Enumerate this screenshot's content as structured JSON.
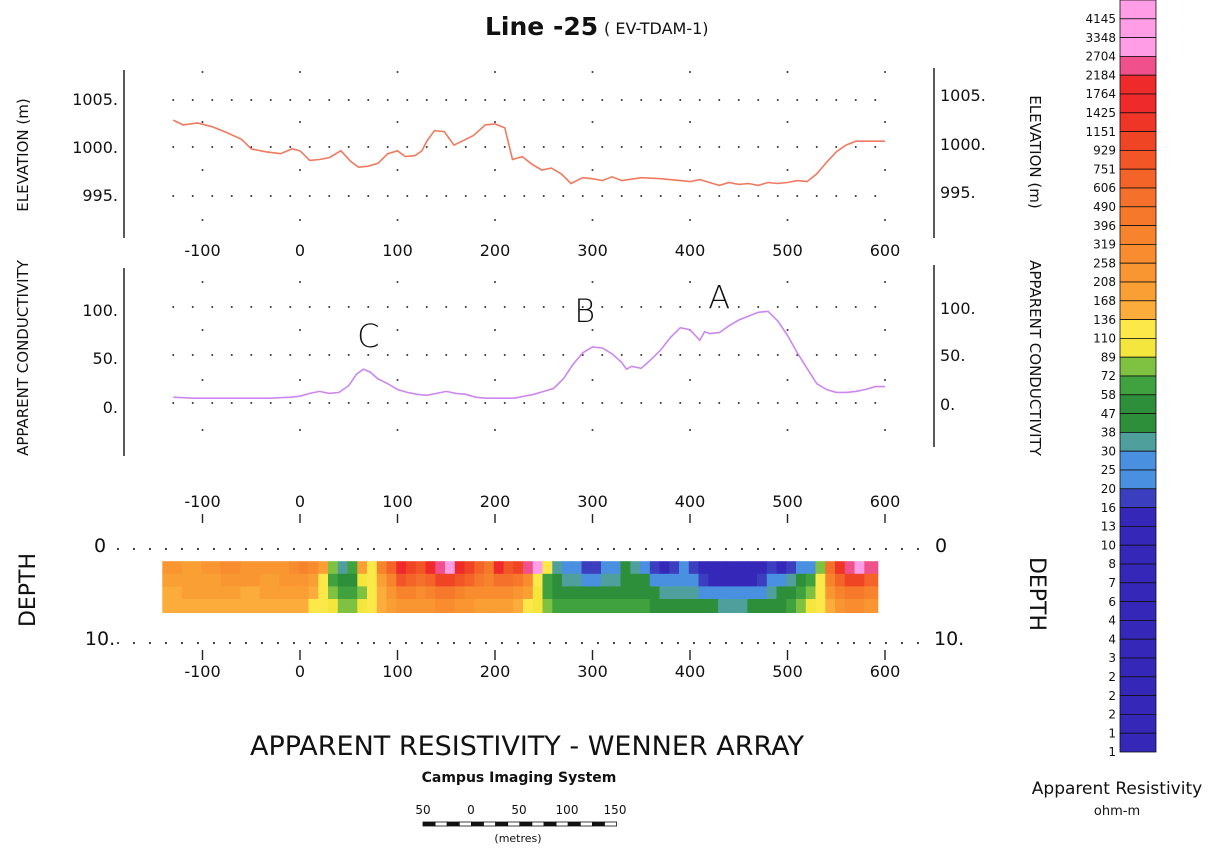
{
  "title": {
    "line": "Line -25",
    "survey": "( EV-TDAM-1)"
  },
  "chart_data": [
    {
      "type": "line",
      "name": "elevation",
      "ylabel_left": "ELEVATION (m)",
      "ylabel_right": "ELEVATION (m)",
      "x_ticks": [
        -100,
        0,
        100,
        200,
        300,
        400,
        500,
        600
      ],
      "y_ticks": [
        "1005.",
        "1000.",
        "995."
      ],
      "xlim": [
        -130,
        600
      ],
      "ylim": [
        991,
        1009
      ],
      "series_color": "#f07a60",
      "x": [
        -130,
        -120,
        -105,
        -90,
        -75,
        -60,
        -50,
        -35,
        -20,
        -8,
        0,
        10,
        20,
        30,
        42,
        52,
        60,
        70,
        80,
        90,
        100,
        108,
        118,
        125,
        130,
        138,
        148,
        158,
        168,
        178,
        190,
        200,
        210,
        218,
        228,
        238,
        248,
        258,
        268,
        278,
        290,
        300,
        310,
        320,
        330,
        350,
        370,
        390,
        400,
        410,
        420,
        430,
        440,
        450,
        460,
        470,
        480,
        490,
        500,
        510,
        520,
        530,
        540,
        550,
        560,
        570,
        580,
        590,
        600
      ],
      "y": [
        1002.8,
        1002.3,
        1002.5,
        1002.1,
        1001.5,
        1000.8,
        999.8,
        999.5,
        999.3,
        999.8,
        999.6,
        998.6,
        998.7,
        998.9,
        999.6,
        998.5,
        997.9,
        998.0,
        998.3,
        999.3,
        999.6,
        999.0,
        999.1,
        999.6,
        1000.6,
        1001.7,
        1001.6,
        1000.2,
        1000.7,
        1001.2,
        1002.3,
        1002.4,
        1002.0,
        998.7,
        999.0,
        998.2,
        997.6,
        997.8,
        997.2,
        996.2,
        996.8,
        996.7,
        996.5,
        996.9,
        996.5,
        996.8,
        996.7,
        996.5,
        996.4,
        996.6,
        996.3,
        996.0,
        996.3,
        996.1,
        996.2,
        996.0,
        996.3,
        996.2,
        996.3,
        996.5,
        996.4,
        997.2,
        998.4,
        999.5,
        1000.2,
        1000.6,
        1000.6,
        1000.6,
        1000.6
      ]
    },
    {
      "type": "line",
      "name": "apparent-conductivity",
      "ylabel_left": "APPARENT CONDUCTIVITY",
      "ylabel_right": "APPARENT CONDUCTIVITY",
      "x_ticks": [
        -100,
        0,
        100,
        200,
        300,
        400,
        500,
        600
      ],
      "y_ticks": [
        "100.",
        "50.",
        "0."
      ],
      "xlim": [
        -130,
        600
      ],
      "ylim": [
        -25,
        145
      ],
      "series_color": "#cc88ee",
      "annotations": [
        {
          "text": "C",
          "x": 70,
          "y": 58
        },
        {
          "text": "B",
          "x": 292,
          "y": 84
        },
        {
          "text": "A",
          "x": 430,
          "y": 98
        }
      ],
      "x": [
        -130,
        -110,
        -90,
        -70,
        -50,
        -30,
        -10,
        0,
        10,
        20,
        30,
        40,
        50,
        58,
        65,
        72,
        80,
        90,
        100,
        110,
        120,
        130,
        140,
        150,
        160,
        170,
        180,
        190,
        200,
        210,
        220,
        230,
        240,
        250,
        260,
        270,
        280,
        290,
        300,
        310,
        320,
        330,
        335,
        340,
        350,
        360,
        370,
        380,
        390,
        400,
        410,
        415,
        420,
        430,
        440,
        450,
        455,
        460,
        470,
        480,
        490,
        500,
        510,
        520,
        530,
        540,
        550,
        560,
        570,
        580,
        590,
        600
      ],
      "y": [
        6,
        5,
        5,
        5,
        5,
        5,
        6,
        7,
        10,
        12,
        10,
        11,
        18,
        30,
        35,
        32,
        25,
        20,
        14,
        11,
        9,
        8,
        10,
        12,
        10,
        9,
        6,
        5,
        5,
        5,
        5,
        7,
        9,
        12,
        15,
        25,
        40,
        52,
        58,
        57,
        51,
        42,
        35,
        38,
        36,
        45,
        55,
        68,
        78,
        76,
        65,
        74,
        72,
        73,
        80,
        86,
        88,
        90,
        94,
        95,
        85,
        70,
        52,
        36,
        20,
        14,
        11,
        11,
        12,
        14,
        17,
        17
      ]
    },
    {
      "type": "heatmap",
      "name": "apparent-resistivity-pseudosection",
      "title": "APPARENT RESISTIVITY - WENNER ARRAY",
      "ylabel_left": "DEPTH",
      "ylabel_right": "DEPTH",
      "x_ticks_top": [
        -100,
        0,
        100,
        200,
        300,
        400,
        500,
        600
      ],
      "x_ticks_bottom": [
        -100,
        0,
        100,
        200,
        300,
        400,
        500,
        600
      ],
      "depth_ticks_left": [
        "0",
        "10."
      ],
      "depth_ticks_right": [
        "0",
        "10."
      ],
      "xlim": [
        -130,
        600
      ],
      "depth_range": [
        0,
        10
      ],
      "value_units": "ohm-m",
      "columns_x": [
        -130,
        -110,
        -90,
        -70,
        -50,
        -30,
        -10,
        0,
        10,
        20,
        30,
        40,
        50,
        60,
        70,
        80,
        90,
        100,
        110,
        120,
        130,
        140,
        150,
        160,
        170,
        180,
        190,
        200,
        210,
        220,
        230,
        240,
        250,
        260,
        270,
        280,
        290,
        300,
        310,
        320,
        330,
        340,
        350,
        360,
        370,
        380,
        390,
        400,
        410,
        420,
        430,
        440,
        450,
        460,
        470,
        480,
        490,
        500,
        510,
        520,
        530,
        540,
        550,
        560,
        570,
        580,
        590
      ],
      "rows_depth": [
        1.5,
        3.5,
        5.5,
        7.5
      ],
      "values": [
        [
          208,
          168,
          208,
          258,
          208,
          208,
          208,
          258,
          319,
          258,
          168,
          72,
          30,
          58,
          168,
          110,
          319,
          606,
          1764,
          929,
          751,
          1764,
          2184,
          3348,
          1764,
          929,
          606,
          396,
          1425,
          751,
          929,
          2184,
          4145,
          110,
          30,
          25,
          20,
          16,
          16,
          20,
          25,
          38,
          30,
          20,
          16,
          13,
          16,
          20,
          16,
          13,
          10,
          8,
          8,
          10,
          8,
          10,
          16,
          13,
          16,
          20,
          25,
          72,
          490,
          1151,
          2184,
          2704,
          2184
        ],
        [
          168,
          168,
          168,
          208,
          208,
          168,
          208,
          208,
          208,
          168,
          110,
          58,
          38,
          47,
          89,
          110,
          168,
          319,
          751,
          606,
          490,
          606,
          929,
          929,
          751,
          606,
          396,
          319,
          490,
          490,
          396,
          258,
          110,
          58,
          38,
          30,
          30,
          25,
          25,
          30,
          30,
          38,
          47,
          38,
          25,
          20,
          20,
          25,
          20,
          16,
          13,
          10,
          10,
          13,
          13,
          16,
          20,
          25,
          30,
          38,
          58,
          110,
          319,
          606,
          929,
          929,
          606
        ],
        [
          136,
          168,
          168,
          168,
          136,
          168,
          168,
          168,
          168,
          136,
          110,
          72,
          58,
          58,
          72,
          110,
          136,
          208,
          319,
          319,
          258,
          319,
          396,
          396,
          319,
          258,
          258,
          258,
          258,
          258,
          208,
          168,
          89,
          58,
          47,
          38,
          38,
          38,
          38,
          38,
          47,
          47,
          47,
          38,
          38,
          30,
          30,
          30,
          30,
          25,
          20,
          20,
          20,
          20,
          20,
          25,
          30,
          38,
          47,
          58,
          72,
          110,
          208,
          319,
          396,
          396,
          319
        ],
        [
          136,
          136,
          136,
          136,
          136,
          136,
          136,
          136,
          136,
          110,
          110,
          89,
          72,
          72,
          89,
          110,
          136,
          168,
          208,
          208,
          208,
          208,
          258,
          258,
          208,
          208,
          168,
          168,
          168,
          168,
          136,
          110,
          89,
          72,
          58,
          58,
          58,
          58,
          58,
          58,
          58,
          58,
          58,
          58,
          47,
          47,
          47,
          47,
          38,
          38,
          38,
          30,
          30,
          30,
          38,
          38,
          47,
          47,
          58,
          72,
          89,
          110,
          136,
          208,
          258,
          258,
          208
        ]
      ]
    }
  ],
  "legend": {
    "title": "Apparent Resistivity",
    "units": "ohm-m",
    "bins": [
      {
        "label": "4145",
        "color": "#ff9ee6"
      },
      {
        "label": "3348",
        "color": "#ff9ee6"
      },
      {
        "label": "2704",
        "color": "#ff9ee6"
      },
      {
        "label": "2184",
        "color": "#f0508c"
      },
      {
        "label": "1764",
        "color": "#ee2a2a"
      },
      {
        "label": "1425",
        "color": "#ee2a2a"
      },
      {
        "label": "1151",
        "color": "#ef3526"
      },
      {
        "label": "929",
        "color": "#f04525"
      },
      {
        "label": "751",
        "color": "#f25526"
      },
      {
        "label": "606",
        "color": "#f46428"
      },
      {
        "label": "490",
        "color": "#f5702a"
      },
      {
        "label": "396",
        "color": "#f6792b"
      },
      {
        "label": "319",
        "color": "#f7832c"
      },
      {
        "label": "258",
        "color": "#f88c2e"
      },
      {
        "label": "208",
        "color": "#f99631"
      },
      {
        "label": "168",
        "color": "#fa9f34"
      },
      {
        "label": "136",
        "color": "#fbac3a"
      },
      {
        "label": "110",
        "color": "#fde84a"
      },
      {
        "label": "89",
        "color": "#f4e63c"
      },
      {
        "label": "72",
        "color": "#7fc241"
      },
      {
        "label": "58",
        "color": "#3fa23e"
      },
      {
        "label": "47",
        "color": "#2e8f3a"
      },
      {
        "label": "38",
        "color": "#2e8f3a"
      },
      {
        "label": "30",
        "color": "#4f9f9c"
      },
      {
        "label": "25",
        "color": "#4a90e0"
      },
      {
        "label": "20",
        "color": "#4a90e0"
      },
      {
        "label": "16",
        "color": "#3c3ec0"
      },
      {
        "label": "13",
        "color": "#3527b8"
      },
      {
        "label": "10",
        "color": "#3527b8"
      },
      {
        "label": "8",
        "color": "#3527b8"
      },
      {
        "label": "7",
        "color": "#3527b8"
      },
      {
        "label": "6",
        "color": "#3527b8"
      },
      {
        "label": "4",
        "color": "#3527b8"
      },
      {
        "label": "4",
        "color": "#3527b8"
      },
      {
        "label": "3",
        "color": "#3527b8"
      },
      {
        "label": "2",
        "color": "#3527b8"
      },
      {
        "label": "2",
        "color": "#3527b8"
      },
      {
        "label": "2",
        "color": "#3527b8"
      },
      {
        "label": "1",
        "color": "#3527b8"
      },
      {
        "label": "1",
        "color": "#3527b8"
      }
    ]
  },
  "footer": {
    "main_title": "APPARENT RESISTIVITY - WENNER ARRAY",
    "system": "Campus Imaging System",
    "scale_labels": [
      "50",
      "0",
      "50",
      "100",
      "150"
    ],
    "scale_units": "(metres)"
  }
}
